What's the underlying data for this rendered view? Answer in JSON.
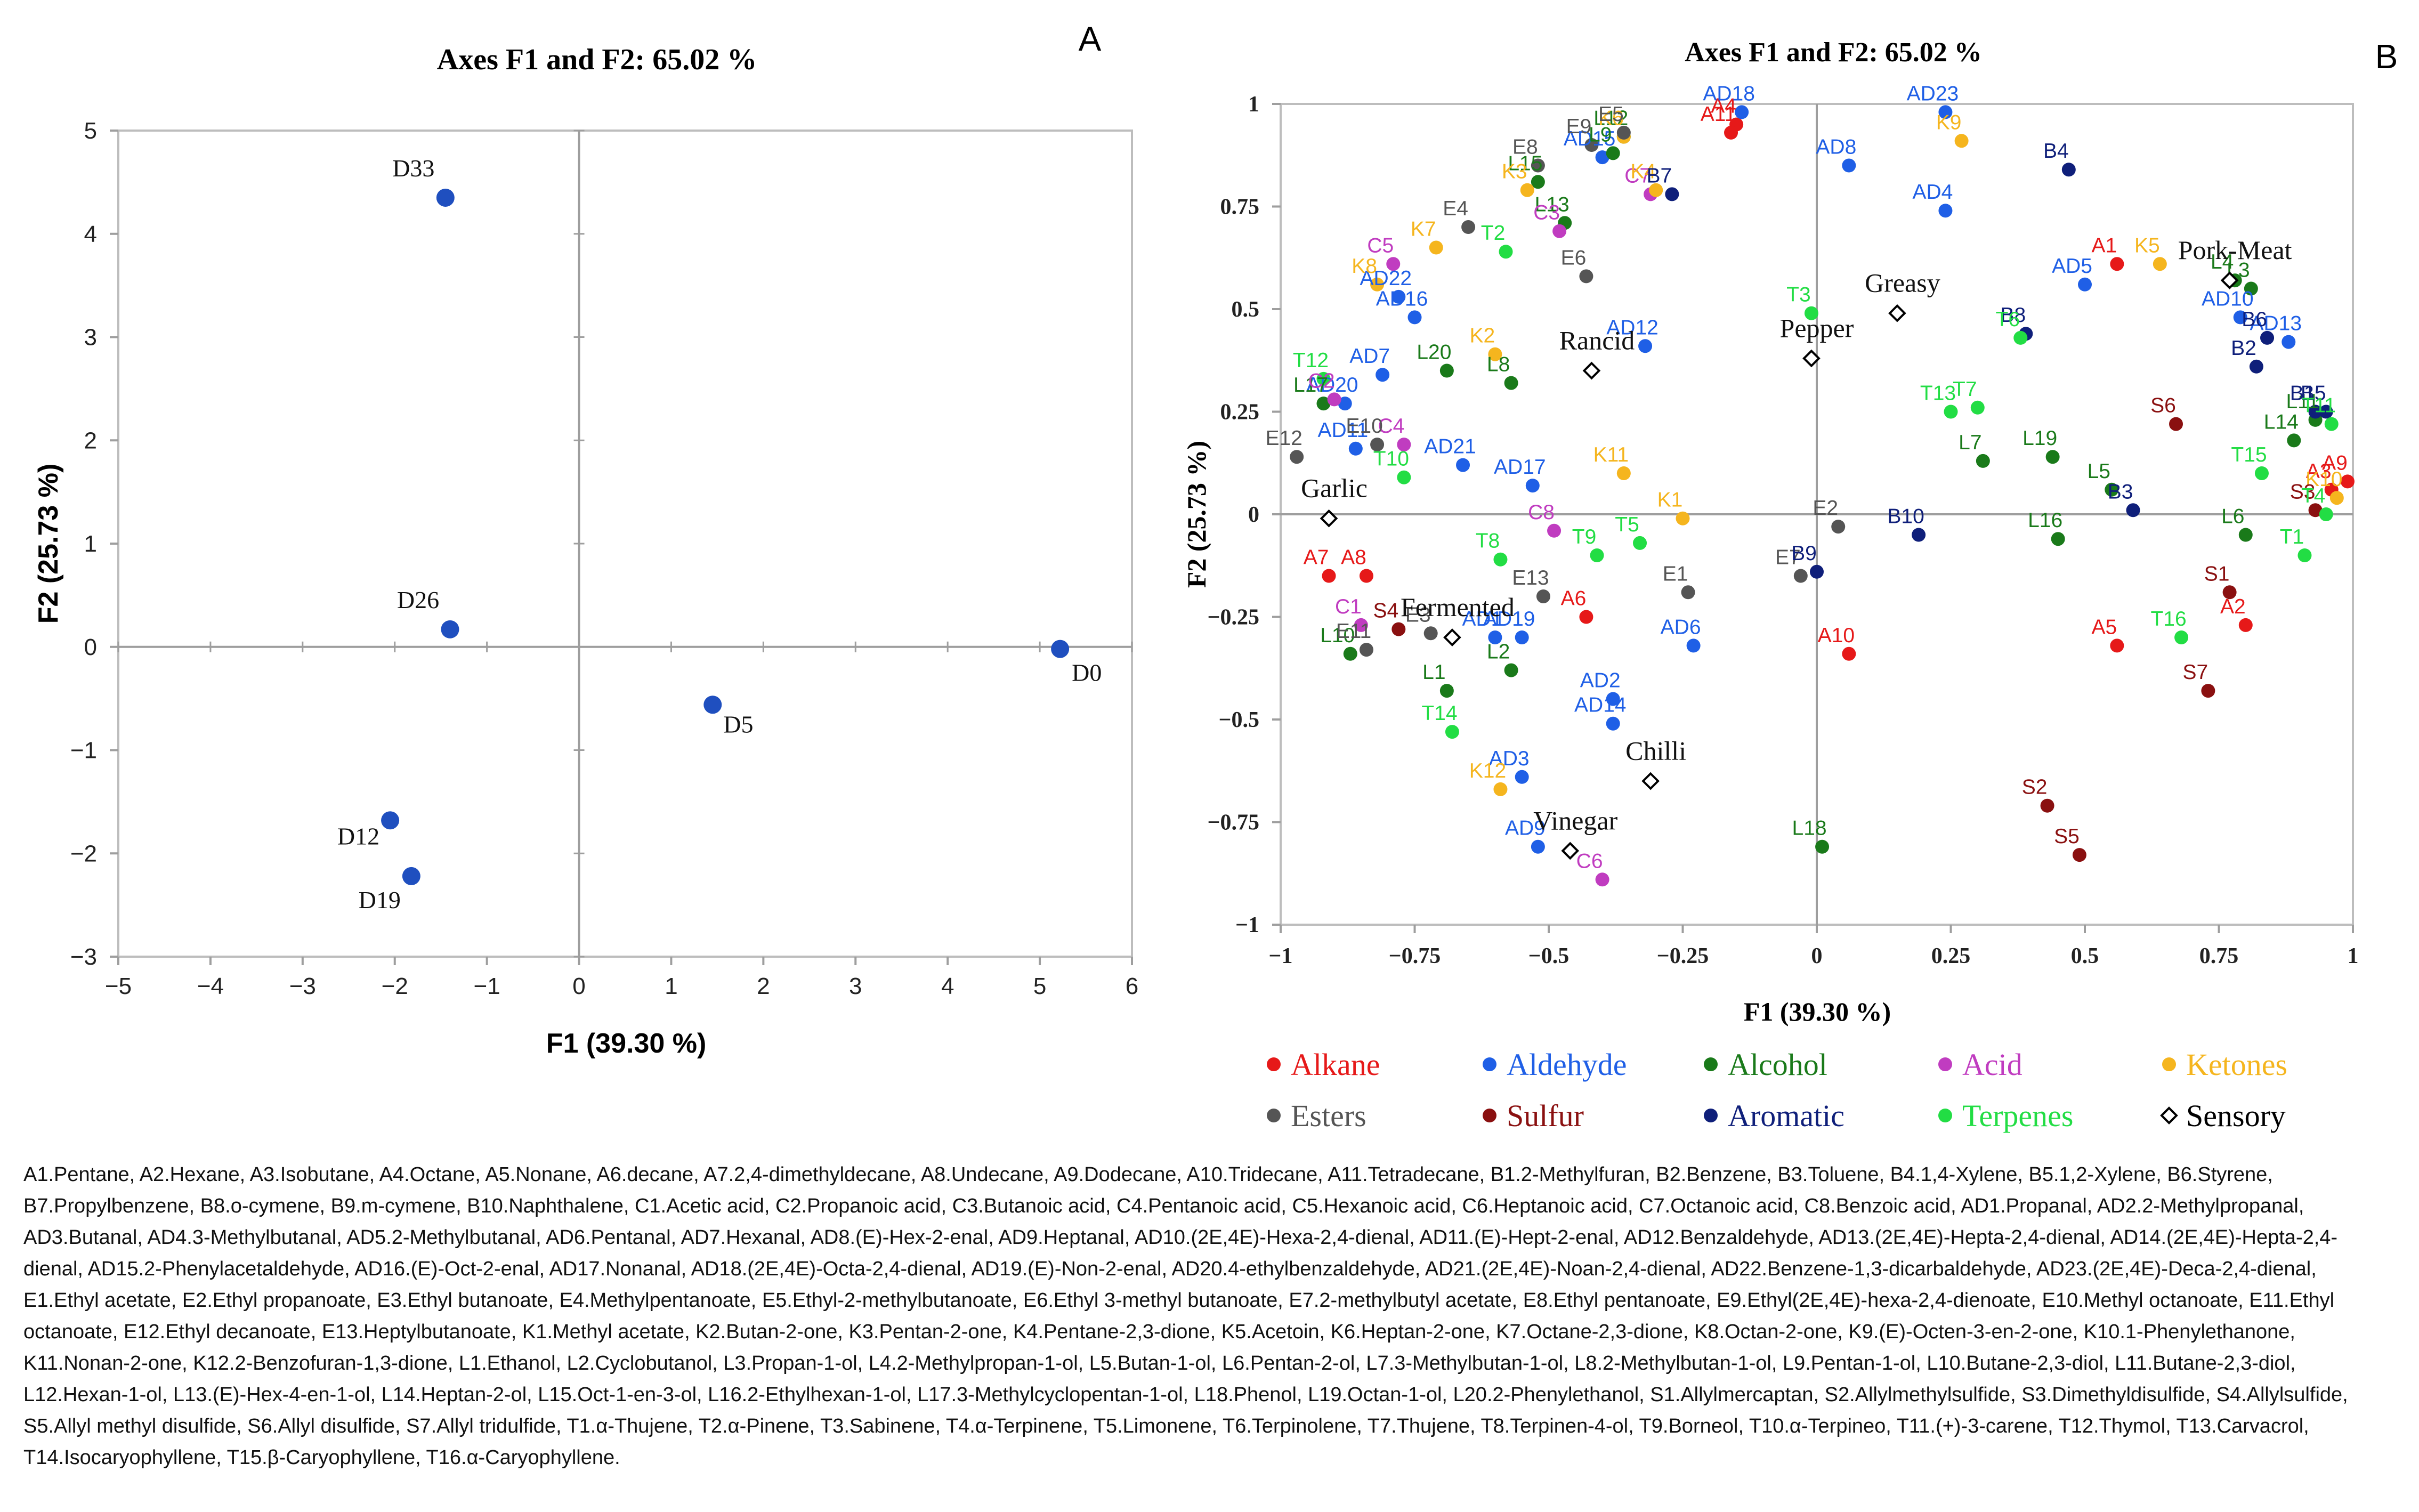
{
  "chart_data": [
    {
      "type": "scatter",
      "panel_label": "A",
      "title": "Axes F1 and F2: 65.02 %",
      "xlabel": "F1 (39.30 %)",
      "ylabel": "F2 (25.73 %)",
      "xlim": [
        -5,
        6
      ],
      "ylim": [
        -3,
        5
      ],
      "xticks": [
        "−5",
        "−4",
        "−3",
        "−2",
        "−1",
        "0",
        "1",
        "2",
        "3",
        "4",
        "5",
        "6"
      ],
      "yticks": [
        "−3",
        "−2",
        "−1",
        "0",
        "1",
        "2",
        "3",
        "4",
        "5"
      ],
      "point_color": "#1f4fbf",
      "points": [
        {
          "label": "D33",
          "x": -1.45,
          "y": 4.35
        },
        {
          "label": "D26",
          "x": -1.4,
          "y": 0.17
        },
        {
          "label": "D0",
          "x": 5.22,
          "y": -0.02
        },
        {
          "label": "D5",
          "x": 1.45,
          "y": -0.56
        },
        {
          "label": "D12",
          "x": -2.05,
          "y": -1.68
        },
        {
          "label": "D19",
          "x": -1.82,
          "y": -2.22
        }
      ]
    },
    {
      "type": "scatter",
      "panel_label": "B",
      "title": "Axes F1 and F2: 65.02 %",
      "xlabel": "F1 (39.30 %)",
      "ylabel": "F2 (25.73 %)",
      "xlim": [
        -1,
        1
      ],
      "ylim": [
        -1,
        1
      ],
      "xticks": [
        "−1",
        "−0.75",
        "−0.5",
        "−0.25",
        "0",
        "0.25",
        "0.5",
        "0.75",
        "1"
      ],
      "yticks": [
        "−1",
        "−0.75",
        "−0.5",
        "−0.25",
        "0",
        "0.25",
        "0.5",
        "0.75",
        "1"
      ],
      "colors": {
        "Alkane": "#e61919",
        "Aldehyde": "#1f5fe6",
        "Alcohol": "#1a7a1a",
        "Acid": "#c03cc0",
        "Ketones": "#f5b51e",
        "Esters": "#555555",
        "Sulfur": "#8a1010",
        "Aromatic": "#0f1f7a",
        "Terpenes": "#22dd44",
        "Sensory": "#000000"
      },
      "legend": [
        "Alkane",
        "Aldehyde",
        "Alcohol",
        "Acid",
        "Ketones",
        "Esters",
        "Sulfur",
        "Aromatic",
        "Terpenes",
        "Sensory"
      ],
      "points": [
        {
          "label": "A1",
          "x": 0.56,
          "y": 0.61,
          "g": "Alkane"
        },
        {
          "label": "A2",
          "x": 0.8,
          "y": -0.27,
          "g": "Alkane"
        },
        {
          "label": "A3",
          "x": 0.96,
          "y": 0.06,
          "g": "Alkane"
        },
        {
          "label": "A4",
          "x": -0.15,
          "y": 0.95,
          "g": "Alkane"
        },
        {
          "label": "A5",
          "x": 0.56,
          "y": -0.32,
          "g": "Alkane"
        },
        {
          "label": "A6",
          "x": -0.43,
          "y": -0.25,
          "g": "Alkane"
        },
        {
          "label": "A7",
          "x": -0.91,
          "y": -0.15,
          "g": "Alkane"
        },
        {
          "label": "A8",
          "x": -0.84,
          "y": -0.15,
          "g": "Alkane"
        },
        {
          "label": "A9",
          "x": 0.99,
          "y": 0.08,
          "g": "Alkane"
        },
        {
          "label": "A10",
          "x": 0.06,
          "y": -0.34,
          "g": "Alkane"
        },
        {
          "label": "A11",
          "x": -0.16,
          "y": 0.93,
          "g": "Alkane"
        },
        {
          "label": "AD1",
          "x": -0.6,
          "y": -0.3,
          "g": "Aldehyde"
        },
        {
          "label": "AD2",
          "x": -0.38,
          "y": -0.45,
          "g": "Aldehyde"
        },
        {
          "label": "AD3",
          "x": -0.55,
          "y": -0.64,
          "g": "Aldehyde"
        },
        {
          "label": "AD4",
          "x": 0.24,
          "y": 0.74,
          "g": "Aldehyde"
        },
        {
          "label": "AD5",
          "x": 0.5,
          "y": 0.56,
          "g": "Aldehyde"
        },
        {
          "label": "AD6",
          "x": -0.23,
          "y": -0.32,
          "g": "Aldehyde"
        },
        {
          "label": "AD7",
          "x": -0.81,
          "y": 0.34,
          "g": "Aldehyde"
        },
        {
          "label": "AD8",
          "x": 0.06,
          "y": 0.85,
          "g": "Aldehyde"
        },
        {
          "label": "AD9",
          "x": -0.52,
          "y": -0.81,
          "g": "Aldehyde"
        },
        {
          "label": "AD10",
          "x": 0.79,
          "y": 0.48,
          "g": "Aldehyde"
        },
        {
          "label": "AD11",
          "x": -0.86,
          "y": 0.16,
          "g": "Aldehyde"
        },
        {
          "label": "AD12",
          "x": -0.32,
          "y": 0.41,
          "g": "Aldehyde"
        },
        {
          "label": "AD13",
          "x": 0.88,
          "y": 0.42,
          "g": "Aldehyde"
        },
        {
          "label": "AD14",
          "x": -0.38,
          "y": -0.51,
          "g": "Aldehyde"
        },
        {
          "label": "AD15",
          "x": -0.4,
          "y": 0.87,
          "g": "Aldehyde"
        },
        {
          "label": "AD16",
          "x": -0.75,
          "y": 0.48,
          "g": "Aldehyde"
        },
        {
          "label": "AD17",
          "x": -0.53,
          "y": 0.07,
          "g": "Aldehyde"
        },
        {
          "label": "AD18",
          "x": -0.14,
          "y": 0.98,
          "g": "Aldehyde"
        },
        {
          "label": "AD19",
          "x": -0.55,
          "y": -0.3,
          "g": "Aldehyde"
        },
        {
          "label": "AD20",
          "x": -0.88,
          "y": 0.27,
          "g": "Aldehyde"
        },
        {
          "label": "AD21",
          "x": -0.66,
          "y": 0.12,
          "g": "Aldehyde"
        },
        {
          "label": "AD22",
          "x": -0.78,
          "y": 0.53,
          "g": "Aldehyde"
        },
        {
          "label": "AD23",
          "x": 0.24,
          "y": 0.98,
          "g": "Aldehyde"
        },
        {
          "label": "L1",
          "x": -0.69,
          "y": -0.43,
          "g": "Alcohol"
        },
        {
          "label": "L2",
          "x": -0.57,
          "y": -0.38,
          "g": "Alcohol"
        },
        {
          "label": "L3",
          "x": 0.81,
          "y": 0.55,
          "g": "Alcohol"
        },
        {
          "label": "L4",
          "x": 0.78,
          "y": 0.57,
          "g": "Alcohol"
        },
        {
          "label": "L5",
          "x": 0.55,
          "y": 0.06,
          "g": "Alcohol"
        },
        {
          "label": "L6",
          "x": 0.8,
          "y": -0.05,
          "g": "Alcohol"
        },
        {
          "label": "L7",
          "x": 0.31,
          "y": 0.13,
          "g": "Alcohol"
        },
        {
          "label": "L8",
          "x": -0.57,
          "y": 0.32,
          "g": "Alcohol"
        },
        {
          "label": "L9",
          "x": -0.38,
          "y": 0.88,
          "g": "Alcohol"
        },
        {
          "label": "L10",
          "x": -0.87,
          "y": -0.34,
          "g": "Alcohol"
        },
        {
          "label": "L11",
          "x": 0.93,
          "y": 0.23,
          "g": "Alcohol"
        },
        {
          "label": "L12",
          "x": -0.36,
          "y": 0.92,
          "g": "Alcohol"
        },
        {
          "label": "L13",
          "x": -0.47,
          "y": 0.71,
          "g": "Alcohol"
        },
        {
          "label": "L14",
          "x": 0.89,
          "y": 0.18,
          "g": "Alcohol"
        },
        {
          "label": "L15",
          "x": -0.52,
          "y": 0.81,
          "g": "Alcohol"
        },
        {
          "label": "L16",
          "x": 0.45,
          "y": -0.06,
          "g": "Alcohol"
        },
        {
          "label": "L17",
          "x": -0.92,
          "y": 0.27,
          "g": "Alcohol"
        },
        {
          "label": "L18",
          "x": 0.01,
          "y": -0.81,
          "g": "Alcohol"
        },
        {
          "label": "L19",
          "x": 0.44,
          "y": 0.14,
          "g": "Alcohol"
        },
        {
          "label": "L20",
          "x": -0.69,
          "y": 0.35,
          "g": "Alcohol"
        },
        {
          "label": "C1",
          "x": -0.85,
          "y": -0.27,
          "g": "Acid"
        },
        {
          "label": "C2",
          "x": -0.9,
          "y": 0.28,
          "g": "Acid"
        },
        {
          "label": "C3",
          "x": -0.48,
          "y": 0.69,
          "g": "Acid"
        },
        {
          "label": "C4",
          "x": -0.77,
          "y": 0.17,
          "g": "Acid"
        },
        {
          "label": "C5",
          "x": -0.79,
          "y": 0.61,
          "g": "Acid"
        },
        {
          "label": "C6",
          "x": -0.4,
          "y": -0.89,
          "g": "Acid"
        },
        {
          "label": "C7",
          "x": -0.31,
          "y": 0.78,
          "g": "Acid"
        },
        {
          "label": "C8",
          "x": -0.49,
          "y": -0.04,
          "g": "Acid"
        },
        {
          "label": "K1",
          "x": -0.25,
          "y": -0.01,
          "g": "Ketones"
        },
        {
          "label": "K2",
          "x": -0.6,
          "y": 0.39,
          "g": "Ketones"
        },
        {
          "label": "K3",
          "x": -0.54,
          "y": 0.79,
          "g": "Ketones"
        },
        {
          "label": "K4",
          "x": -0.3,
          "y": 0.79,
          "g": "Ketones"
        },
        {
          "label": "K5",
          "x": 0.64,
          "y": 0.61,
          "g": "Ketones"
        },
        {
          "label": "K6",
          "x": -0.36,
          "y": 0.92,
          "g": "Ketones"
        },
        {
          "label": "K7",
          "x": -0.71,
          "y": 0.65,
          "g": "Ketones"
        },
        {
          "label": "K8",
          "x": -0.82,
          "y": 0.56,
          "g": "Ketones"
        },
        {
          "label": "K9",
          "x": 0.27,
          "y": 0.91,
          "g": "Ketones"
        },
        {
          "label": "K10",
          "x": 0.97,
          "y": 0.04,
          "g": "Ketones"
        },
        {
          "label": "K11",
          "x": -0.36,
          "y": 0.1,
          "g": "Ketones"
        },
        {
          "label": "K12",
          "x": -0.59,
          "y": -0.67,
          "g": "Ketones"
        },
        {
          "label": "E1",
          "x": -0.24,
          "y": -0.19,
          "g": "Esters"
        },
        {
          "label": "E2",
          "x": 0.04,
          "y": -0.03,
          "g": "Esters"
        },
        {
          "label": "E3",
          "x": -0.72,
          "y": -0.29,
          "g": "Esters"
        },
        {
          "label": "E4",
          "x": -0.65,
          "y": 0.7,
          "g": "Esters"
        },
        {
          "label": "E5",
          "x": -0.36,
          "y": 0.93,
          "g": "Esters"
        },
        {
          "label": "E6",
          "x": -0.43,
          "y": 0.58,
          "g": "Esters"
        },
        {
          "label": "E7",
          "x": -0.03,
          "y": -0.15,
          "g": "Esters"
        },
        {
          "label": "E8",
          "x": -0.52,
          "y": 0.85,
          "g": "Esters"
        },
        {
          "label": "E9",
          "x": -0.42,
          "y": 0.9,
          "g": "Esters"
        },
        {
          "label": "E10",
          "x": -0.82,
          "y": 0.17,
          "g": "Esters"
        },
        {
          "label": "E11",
          "x": -0.84,
          "y": -0.33,
          "g": "Esters"
        },
        {
          "label": "E12",
          "x": -0.97,
          "y": 0.14,
          "g": "Esters"
        },
        {
          "label": "E13",
          "x": -0.51,
          "y": -0.2,
          "g": "Esters"
        },
        {
          "label": "S1",
          "x": 0.77,
          "y": -0.19,
          "g": "Sulfur"
        },
        {
          "label": "S2",
          "x": 0.43,
          "y": -0.71,
          "g": "Sulfur"
        },
        {
          "label": "S3",
          "x": 0.93,
          "y": 0.01,
          "g": "Sulfur"
        },
        {
          "label": "S4",
          "x": -0.78,
          "y": -0.28,
          "g": "Sulfur"
        },
        {
          "label": "S5",
          "x": 0.49,
          "y": -0.83,
          "g": "Sulfur"
        },
        {
          "label": "S6",
          "x": 0.67,
          "y": 0.22,
          "g": "Sulfur"
        },
        {
          "label": "S7",
          "x": 0.73,
          "y": -0.43,
          "g": "Sulfur"
        },
        {
          "label": "B1",
          "x": 0.93,
          "y": 0.25,
          "g": "Aromatic"
        },
        {
          "label": "B2",
          "x": 0.82,
          "y": 0.36,
          "g": "Aromatic"
        },
        {
          "label": "B3",
          "x": 0.59,
          "y": 0.01,
          "g": "Aromatic"
        },
        {
          "label": "B4",
          "x": 0.47,
          "y": 0.84,
          "g": "Aromatic"
        },
        {
          "label": "B5",
          "x": 0.95,
          "y": 0.25,
          "g": "Aromatic"
        },
        {
          "label": "B6",
          "x": 0.84,
          "y": 0.43,
          "g": "Aromatic"
        },
        {
          "label": "B7",
          "x": -0.27,
          "y": 0.78,
          "g": "Aromatic"
        },
        {
          "label": "B8",
          "x": 0.39,
          "y": 0.44,
          "g": "Aromatic"
        },
        {
          "label": "B9",
          "x": 0.0,
          "y": -0.14,
          "g": "Aromatic"
        },
        {
          "label": "B10",
          "x": 0.19,
          "y": -0.05,
          "g": "Aromatic"
        },
        {
          "label": "T1",
          "x": 0.91,
          "y": -0.1,
          "g": "Terpenes"
        },
        {
          "label": "T2",
          "x": -0.58,
          "y": 0.64,
          "g": "Terpenes"
        },
        {
          "label": "T3",
          "x": -0.01,
          "y": 0.49,
          "g": "Terpenes"
        },
        {
          "label": "T4",
          "x": 0.95,
          "y": 0.0,
          "g": "Terpenes"
        },
        {
          "label": "T5",
          "x": -0.33,
          "y": -0.07,
          "g": "Terpenes"
        },
        {
          "label": "T6",
          "x": 0.38,
          "y": 0.43,
          "g": "Terpenes"
        },
        {
          "label": "T7",
          "x": 0.3,
          "y": 0.26,
          "g": "Terpenes"
        },
        {
          "label": "T8",
          "x": -0.59,
          "y": -0.11,
          "g": "Terpenes"
        },
        {
          "label": "T9",
          "x": -0.41,
          "y": -0.1,
          "g": "Terpenes"
        },
        {
          "label": "T10",
          "x": -0.77,
          "y": 0.09,
          "g": "Terpenes"
        },
        {
          "label": "T11",
          "x": 0.96,
          "y": 0.22,
          "g": "Terpenes"
        },
        {
          "label": "T12",
          "x": -0.92,
          "y": 0.33,
          "g": "Terpenes"
        },
        {
          "label": "T13",
          "x": 0.25,
          "y": 0.25,
          "g": "Terpenes"
        },
        {
          "label": "T14",
          "x": -0.68,
          "y": -0.53,
          "g": "Terpenes"
        },
        {
          "label": "T15",
          "x": 0.83,
          "y": 0.1,
          "g": "Terpenes"
        },
        {
          "label": "T16",
          "x": 0.68,
          "y": -0.3,
          "g": "Terpenes"
        }
      ],
      "sensory": [
        {
          "label": "Greasy",
          "x": 0.15,
          "y": 0.49
        },
        {
          "label": "Pork-Meat",
          "x": 0.77,
          "y": 0.57
        },
        {
          "label": "Rancid",
          "x": -0.42,
          "y": 0.35
        },
        {
          "label": "Pepper",
          "x": -0.01,
          "y": 0.38
        },
        {
          "label": "Garlic",
          "x": -0.91,
          "y": -0.01
        },
        {
          "label": "Fermented",
          "x": -0.68,
          "y": -0.3
        },
        {
          "label": "Chilli",
          "x": -0.31,
          "y": -0.65
        },
        {
          "label": "Vinegar",
          "x": -0.46,
          "y": -0.82
        }
      ]
    }
  ],
  "caption": "A1.Pentane, A2.Hexane, A3.Isobutane, A4.Octane, A5.Nonane, A6.decane, A7.2,4-dimethyldecane, A8.Undecane, A9.Dodecane, A10.Tridecane, A11.Tetradecane, B1.2-Methylfuran, B2.Benzene, B3.Toluene, B4.1,4-Xylene, B5.1,2-Xylene, B6.Styrene, B7.Propylbenzene, B8.o-cymene, B9.m-cymene, B10.Naphthalene, C1.Acetic acid, C2.Propanoic acid, C3.Butanoic acid, C4.Pentanoic acid, C5.Hexanoic acid, C6.Heptanoic acid, C7.Octanoic acid, C8.Benzoic acid, AD1.Propanal, AD2.2-Methylpropanal, AD3.Butanal, AD4.3-Methylbutanal, AD5.2-Methylbutanal, AD6.Pentanal, AD7.Hexanal, AD8.(E)-Hex-2-enal, AD9.Heptanal, AD10.(2E,4E)-Hexa-2,4-dienal, AD11.(E)-Hept-2-enal, AD12.Benzaldehyde, AD13.(2E,4E)-Hepta-2,4-dienal, AD14.(2E,4E)-Hepta-2,4-dienal, AD15.2-Phenylacetaldehyde, AD16.(E)-Oct-2-enal, AD17.Nonanal, AD18.(2E,4E)-Octa-2,4-dienal, AD19.(E)-Non-2-enal, AD20.4-ethylbenzaldehyde, AD21.(2E,4E)-Noan-2,4-dienal, AD22.Benzene-1,3-dicarbaldehyde, AD23.(2E,4E)-Deca-2,4-dienal, E1.Ethyl acetate, E2.Ethyl propanoate, E3.Ethyl butanoate, E4.Methylpentanoate, E5.Ethyl-2-methylbutanoate, E6.Ethyl 3-methyl butanoate, E7.2-methylbutyl acetate, E8.Ethyl pentanoate, E9.Ethyl(2E,4E)-hexa-2,4-dienoate, E10.Methyl octanoate, E11.Ethyl octanoate, E12.Ethyl decanoate, E13.Heptylbutanoate, K1.Methyl acetate, K2.Butan-2-one, K3.Pentan-2-one, K4.Pentane-2,3-dione, K5.Acetoin, K6.Heptan-2-one, K7.Octane-2,3-dione, K8.Octan-2-one, K9.(E)-Octen-3-en-2-one, K10.1-Phenylethanone, K11.Nonan-2-one, K12.2-Benzofuran-1,3-dione, L1.Ethanol, L2.Cyclobutanol, L3.Propan-1-ol, L4.2-Methylpropan-1-ol, L5.Butan-1-ol, L6.Pentan-2-ol, L7.3-Methylbutan-1-ol, L8.2-Methylbutan-1-ol, L9.Pentan-1-ol, L10.Butane-2,3-diol, L11.Butane-2,3-diol, L12.Hexan-1-ol, L13.(E)-Hex-4-en-1-ol, L14.Heptan-2-ol, L15.Oct-1-en-3-ol, L16.2-Ethylhexan-1-ol, L17.3-Methylcyclopentan-1-ol, L18.Phenol, L19.Octan-1-ol, L20.2-Phenylethanol, S1.Allylmercaptan, S2.Allylmethylsulfide, S3.Dimethyldisulfide, S4.Allylsulfide, S5.Allyl methyl disulfide, S6.Allyl disulfide, S7.Allyl tridulfide, T1.α-Thujene, T2.α-Pinene, T3.Sabinene, T4.α-Terpinene, T5.Limonene, T6.Terpinolene, T7.Thujene, T8.Terpinen-4-ol, T9.Borneol, T10.α-Terpineo, T11.(+)-3-carene, T12.Thymol, T13.Carvacrol, T14.Isocaryophyllene, T15.β-Caryophyllene, T16.α-Caryophyllene."
}
